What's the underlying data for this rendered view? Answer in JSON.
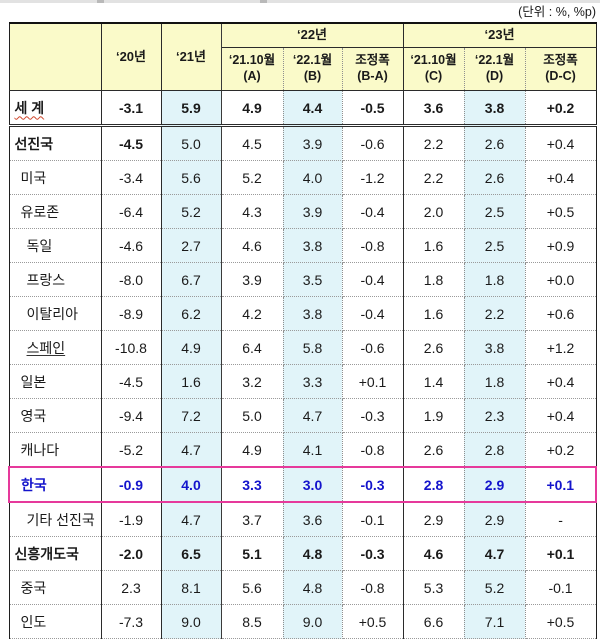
{
  "unit_label": "(단위 : %, %p)",
  "table": {
    "header": {
      "corner": "",
      "y20": "‘20년",
      "y21": "‘21년",
      "group_22": "‘22년",
      "group_23": "‘23년",
      "sub": [
        {
          "line1": "‘21.10월",
          "line2": "(A)"
        },
        {
          "line1": "‘22.1월",
          "line2": "(B)"
        },
        {
          "line1": "조정폭",
          "line2": "(B-A)"
        },
        {
          "line1": "‘21.10월",
          "line2": "(C)"
        },
        {
          "line1": "‘22.1월",
          "line2": "(D)"
        },
        {
          "line1": "조정폭",
          "line2": "(D-C)"
        }
      ]
    },
    "blue_value_columns": [
      2,
      4,
      7
    ],
    "colors": {
      "header_bg": "#fafac9",
      "highlight_col_bg": "#e1f4f9",
      "korea_box_border": "#e6399b",
      "korea_text": "#1414cc",
      "text": "#1a1a1a"
    },
    "rows": [
      {
        "label": "세  계",
        "indent": 0,
        "style": "all-bold",
        "decor": "wavy",
        "sep": "double",
        "values": [
          "-3.1",
          "5.9",
          "4.9",
          "4.4",
          "-0.5",
          "3.6",
          "3.8",
          "+0.2"
        ]
      },
      {
        "label": "선진국",
        "indent": 0,
        "style": "label-first-bold",
        "decor": null,
        "sep": "dotted",
        "values": [
          "-4.5",
          "5.0",
          "4.5",
          "3.9",
          "-0.6",
          "2.2",
          "2.6",
          "+0.4"
        ]
      },
      {
        "label": "미국",
        "indent": 1,
        "style": "normal",
        "decor": null,
        "sep": "dotted",
        "values": [
          "-3.4",
          "5.6",
          "5.2",
          "4.0",
          "-1.2",
          "2.2",
          "2.6",
          "+0.4"
        ]
      },
      {
        "label": "유로존",
        "indent": 1,
        "style": "normal",
        "decor": null,
        "sep": "dotted",
        "values": [
          "-6.4",
          "5.2",
          "4.3",
          "3.9",
          "-0.4",
          "2.0",
          "2.5",
          "+0.5"
        ]
      },
      {
        "label": "독일",
        "indent": 2,
        "style": "normal",
        "decor": null,
        "sep": "dotted",
        "values": [
          "-4.6",
          "2.7",
          "4.6",
          "3.8",
          "-0.8",
          "1.6",
          "2.5",
          "+0.9"
        ]
      },
      {
        "label": "프랑스",
        "indent": 2,
        "style": "normal",
        "decor": null,
        "sep": "dotted",
        "values": [
          "-8.0",
          "6.7",
          "3.9",
          "3.5",
          "-0.4",
          "1.8",
          "1.8",
          "+0.0"
        ]
      },
      {
        "label": "이탈리아",
        "indent": 2,
        "style": "normal",
        "decor": null,
        "sep": "dotted",
        "values": [
          "-8.9",
          "6.2",
          "4.2",
          "3.8",
          "-0.4",
          "1.6",
          "2.2",
          "+0.6"
        ]
      },
      {
        "label": "스페인",
        "indent": 2,
        "style": "normal",
        "decor": "plain-underline",
        "sep": "dotted",
        "values": [
          "-10.8",
          "4.9",
          "6.4",
          "5.8",
          "-0.6",
          "2.6",
          "3.8",
          "+1.2"
        ]
      },
      {
        "label": "일본",
        "indent": 1,
        "style": "normal",
        "decor": null,
        "sep": "dotted",
        "values": [
          "-4.5",
          "1.6",
          "3.2",
          "3.3",
          "+0.1",
          "1.4",
          "1.8",
          "+0.4"
        ]
      },
      {
        "label": "영국",
        "indent": 1,
        "style": "normal",
        "decor": null,
        "sep": "dotted",
        "values": [
          "-9.4",
          "7.2",
          "5.0",
          "4.7",
          "-0.3",
          "1.9",
          "2.3",
          "+0.4"
        ]
      },
      {
        "label": "캐나다",
        "indent": 1,
        "style": "normal",
        "decor": null,
        "sep": "dotted",
        "values": [
          "-5.2",
          "4.7",
          "4.9",
          "4.1",
          "-0.8",
          "2.6",
          "2.8",
          "+0.2"
        ]
      },
      {
        "label": "한국",
        "indent": 1,
        "style": "korea",
        "decor": null,
        "sep": "dotted",
        "values": [
          "-0.9",
          "4.0",
          "3.3",
          "3.0",
          "-0.3",
          "2.8",
          "2.9",
          "+0.1"
        ]
      },
      {
        "label": "기타 선진국",
        "indent": 2,
        "style": "normal",
        "decor": null,
        "sep": "dotted",
        "values": [
          "-1.9",
          "4.7",
          "3.7",
          "3.6",
          "-0.1",
          "2.9",
          "2.9",
          "-"
        ]
      },
      {
        "label": "신흥개도국",
        "indent": 0,
        "style": "all-bold",
        "decor": null,
        "sep": "dotted",
        "values": [
          "-2.0",
          "6.5",
          "5.1",
          "4.8",
          "-0.3",
          "4.6",
          "4.7",
          "+0.1"
        ]
      },
      {
        "label": "중국",
        "indent": 1,
        "style": "normal",
        "decor": null,
        "sep": "dotted",
        "values": [
          "2.3",
          "8.1",
          "5.6",
          "4.8",
          "-0.8",
          "5.3",
          "5.2",
          "-0.1"
        ]
      },
      {
        "label": "인도",
        "indent": 1,
        "style": "normal",
        "decor": null,
        "sep": "dotted",
        "values": [
          "-7.3",
          "9.0",
          "8.5",
          "9.0",
          "+0.5",
          "6.6",
          "7.1",
          "+0.5"
        ]
      }
    ]
  },
  "chart_data": {
    "type": "table",
    "title": "세계 경제성장률 전망 (IMF)",
    "unit": "%, %p",
    "columns": [
      "‘20년",
      "‘21년",
      "‘22년 ‘21.10월(A)",
      "‘22년 ‘22.1월(B)",
      "‘22년 조정폭(B-A)",
      "‘23년 ‘21.10월(C)",
      "‘23년 ‘22.1월(D)",
      "‘23년 조정폭(D-C)"
    ],
    "row_labels": [
      "세계",
      "선진국",
      "미국",
      "유로존",
      "독일",
      "프랑스",
      "이탈리아",
      "스페인",
      "일본",
      "영국",
      "캐나다",
      "한국",
      "기타 선진국",
      "신흥개도국",
      "중국",
      "인도"
    ],
    "values": [
      [
        -3.1,
        5.9,
        4.9,
        4.4,
        -0.5,
        3.6,
        3.8,
        0.2
      ],
      [
        -4.5,
        5.0,
        4.5,
        3.9,
        -0.6,
        2.2,
        2.6,
        0.4
      ],
      [
        -3.4,
        5.6,
        5.2,
        4.0,
        -1.2,
        2.2,
        2.6,
        0.4
      ],
      [
        -6.4,
        5.2,
        4.3,
        3.9,
        -0.4,
        2.0,
        2.5,
        0.5
      ],
      [
        -4.6,
        2.7,
        4.6,
        3.8,
        -0.8,
        1.6,
        2.5,
        0.9
      ],
      [
        -8.0,
        6.7,
        3.9,
        3.5,
        -0.4,
        1.8,
        1.8,
        0.0
      ],
      [
        -8.9,
        6.2,
        4.2,
        3.8,
        -0.4,
        1.6,
        2.2,
        0.6
      ],
      [
        -10.8,
        4.9,
        6.4,
        5.8,
        -0.6,
        2.6,
        3.8,
        1.2
      ],
      [
        -4.5,
        1.6,
        3.2,
        3.3,
        0.1,
        1.4,
        1.8,
        0.4
      ],
      [
        -9.4,
        7.2,
        5.0,
        4.7,
        -0.3,
        1.9,
        2.3,
        0.4
      ],
      [
        -5.2,
        4.7,
        4.9,
        4.1,
        -0.8,
        2.6,
        2.8,
        0.2
      ],
      [
        -0.9,
        4.0,
        3.3,
        3.0,
        -0.3,
        2.8,
        2.9,
        0.1
      ],
      [
        -1.9,
        4.7,
        3.7,
        3.6,
        -0.1,
        2.9,
        2.9,
        null
      ],
      [
        -2.0,
        6.5,
        5.1,
        4.8,
        -0.3,
        4.6,
        4.7,
        0.1
      ],
      [
        2.3,
        8.1,
        5.6,
        4.8,
        -0.8,
        5.3,
        5.2,
        -0.1
      ],
      [
        -7.3,
        9.0,
        8.5,
        9.0,
        0.5,
        6.6,
        7.1,
        0.5
      ]
    ]
  }
}
